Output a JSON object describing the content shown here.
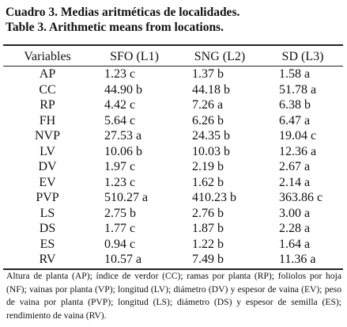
{
  "caption_es": "Cuadro 3. Medias aritméticas de localidades.",
  "caption_en": "Table 3. Arithmetic means from locations.",
  "headers": [
    "Variables",
    "SFO (L1)",
    "SNG (L2)",
    "SD (L3)"
  ],
  "rows": [
    [
      "AP",
      "1.23 c",
      "1.37 b",
      "1.58 a"
    ],
    [
      "CC",
      "44.90 b",
      "44.18 b",
      "51.78 a"
    ],
    [
      "RP",
      "4.42 c",
      "7.26 a",
      "6.38 b"
    ],
    [
      "FH",
      "5.64 c",
      "6.26 b",
      "6.47 a"
    ],
    [
      "NVP",
      "27.53 a",
      "24.35 b",
      "19.04 c"
    ],
    [
      "LV",
      "10.06 b",
      "10.03 b",
      "12.36 a"
    ],
    [
      "DV",
      "1.97 c",
      "2.19 b",
      "2.67 a"
    ],
    [
      "EV",
      "1.23 c",
      "1.62 b",
      "2.14 a"
    ],
    [
      "PVP",
      "510.27 a",
      "410.23 b",
      "363.86 c"
    ],
    [
      "LS",
      "2.75 b",
      "2.76 b",
      "3.00 a"
    ],
    [
      "DS",
      "1.77 c",
      "1.87 b",
      "2.28 a"
    ],
    [
      "ES",
      "0.94 c",
      "1.22 b",
      "1.64 a"
    ],
    [
      "RV",
      "10.57 a",
      "7.49 b",
      "11.36 a"
    ]
  ],
  "footnote": "Altura de planta (AP); índice de verdor (CC); ramas por planta (RP); foliolos por hoja (NF); vainas por planta (VP); longitud (LV); diámetro (DV) y espesor de vaina (EV); peso de vaina por planta (PVP); longitud (LS); diámetro (DS) y espesor de semilla (ES); rendimiento de vaina (RV)."
}
